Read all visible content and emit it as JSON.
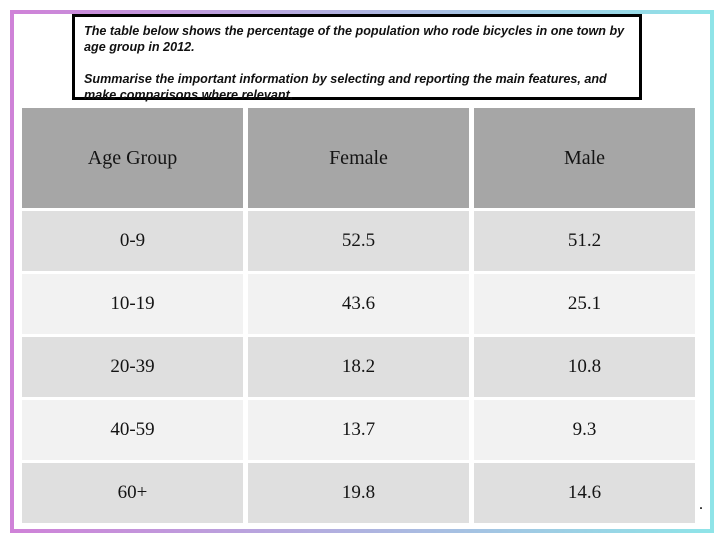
{
  "page": {
    "frame_gradient_left": "#cf82d8",
    "frame_gradient_right": "#8fe4e8",
    "header_bg": "#a6a6a6",
    "row_dark": "#dfdfdf",
    "row_light": "#f2f2f2"
  },
  "prompt": {
    "paragraph1": "The table below shows the percentage of the population who rode bicycles in one town by age group in 2012.",
    "paragraph2": "Summarise the important information by selecting and reporting the main features, and make comparisons where relevant."
  },
  "table": {
    "headers": [
      "Age Group",
      "Female",
      "Male"
    ],
    "rows": [
      [
        "0-9",
        "52.5",
        "51.2"
      ],
      [
        "10-19",
        "43.6",
        "25.1"
      ],
      [
        "20-39",
        "18.2",
        "10.8"
      ],
      [
        "40-59",
        "13.7",
        "9.3"
      ],
      [
        "60+",
        "19.8",
        "14.6"
      ]
    ]
  },
  "footnote": ".",
  "chart_data": {
    "type": "table",
    "title": "Percentage of the population who rode bicycles in one town by age group in 2012",
    "columns": [
      "Age Group",
      "Female",
      "Male"
    ],
    "categories": [
      "0-9",
      "10-19",
      "20-39",
      "40-59",
      "60+"
    ],
    "series": [
      {
        "name": "Female",
        "values": [
          52.5,
          43.6,
          18.2,
          13.7,
          19.8
        ]
      },
      {
        "name": "Male",
        "values": [
          51.2,
          25.1,
          10.8,
          9.3,
          14.6
        ]
      }
    ]
  }
}
